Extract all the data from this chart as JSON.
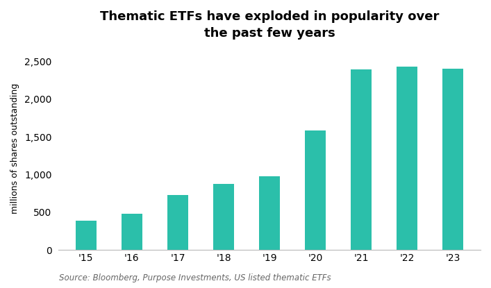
{
  "title": "Thematic ETFs have exploded in popularity over\nthe past few years",
  "categories": [
    "'15",
    "'16",
    "'17",
    "'18",
    "'19",
    "'20",
    "'21",
    "'22",
    "'23"
  ],
  "values": [
    390,
    480,
    730,
    880,
    980,
    1580,
    2390,
    2430,
    2400
  ],
  "bar_color": "#2bbfaa",
  "ylabel": "millions of shares outstanding",
  "ylim": [
    0,
    2700
  ],
  "yticks": [
    0,
    500,
    1000,
    1500,
    2000,
    2500
  ],
  "ytick_labels": [
    "0",
    "500",
    "1,000",
    "1,500",
    "2,000",
    "2,500"
  ],
  "source": "Source: Bloomberg, Purpose Investments, US listed thematic ETFs",
  "background_color": "#ffffff",
  "title_fontsize": 13,
  "label_fontsize": 9,
  "tick_fontsize": 10,
  "source_fontsize": 8.5
}
